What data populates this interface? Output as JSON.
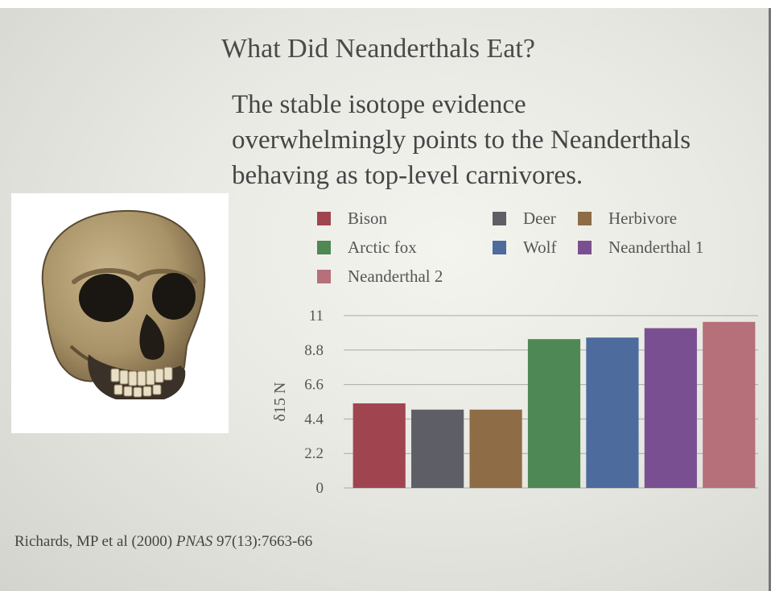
{
  "slide": {
    "title": "What Did Neanderthals Eat?",
    "body_lines": [
      "The stable isotope evidence",
      "overwhelmingly points to the Neanderthals",
      "behaving as top-level carnivores."
    ]
  },
  "citation": {
    "authors": "Richards, MP et al (2000)",
    "journal": "PNAS",
    "issue": "97(13):7663-66"
  },
  "colors": {
    "Bison": "#a04550",
    "Deer": "#5e5e66",
    "Herbivore": "#8e6c45",
    "Arctic fox": "#4e8855",
    "Wolf": "#4d6b9d",
    "Neanderthal 1": "#7a4f92",
    "Neanderthal 2": "#b5707a"
  },
  "chart_data": {
    "type": "bar",
    "ylabel": "δ15 N",
    "ylim": [
      0,
      11
    ],
    "yticks": [
      "11",
      "8.8",
      "6.6",
      "4.4",
      "2.2",
      "0"
    ],
    "grid": true,
    "legend_position": "top",
    "series": [
      {
        "name": "Bison",
        "values": [
          5.4
        ]
      },
      {
        "name": "Deer",
        "values": [
          5.0
        ]
      },
      {
        "name": "Herbivore",
        "values": [
          5.0
        ]
      },
      {
        "name": "Arctic fox",
        "values": [
          9.5
        ]
      },
      {
        "name": "Wolf",
        "values": [
          9.6
        ]
      },
      {
        "name": "Neanderthal 1",
        "values": [
          10.2
        ]
      },
      {
        "name": "Neanderthal 2",
        "values": [
          10.6
        ]
      }
    ]
  }
}
